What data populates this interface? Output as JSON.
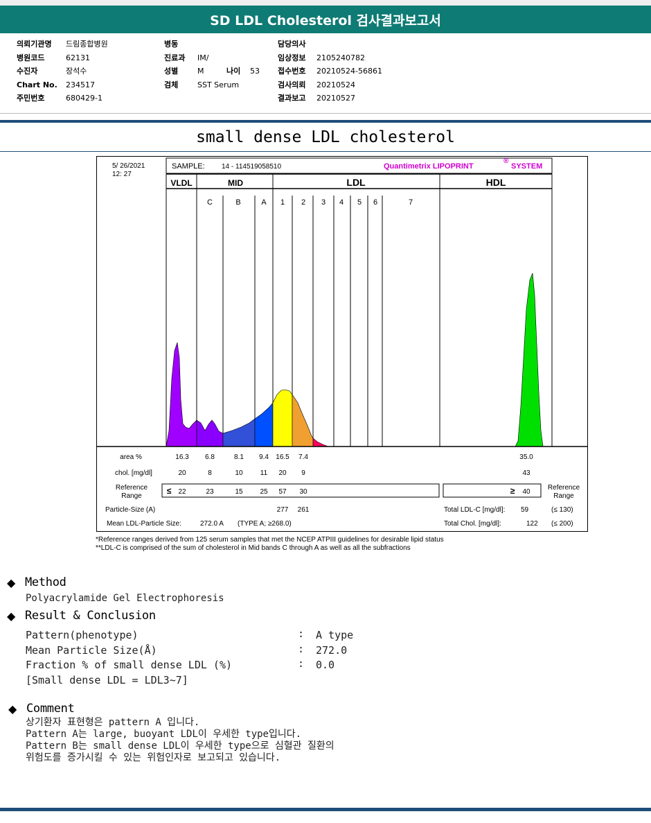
{
  "header": {
    "title": "SD LDL Cholesterol 검사결과보고서"
  },
  "info": {
    "col1": [
      {
        "label": "의뢰기관명",
        "value": "드림종합병원"
      },
      {
        "label": "병원코드",
        "value": "62131"
      },
      {
        "label": "수진자",
        "value": "장석수"
      },
      {
        "label": "Chart No.",
        "value": "234517"
      },
      {
        "label": "주민번호",
        "value": "680429-1"
      }
    ],
    "col2": [
      {
        "label": "병동",
        "value": ""
      },
      {
        "label": "진료과",
        "value": "IM/"
      },
      {
        "label": "성별",
        "value": "M"
      },
      {
        "label": "검체",
        "value": "SST Serum"
      }
    ],
    "age_label": "나이",
    "age_value": "53",
    "col3": [
      {
        "label": "담당의사",
        "value": ""
      },
      {
        "label": "임상정보",
        "value": "2105240782"
      },
      {
        "label": "접수번호",
        "value": "20210524-56861"
      },
      {
        "label": "검사의뢰",
        "value": "20210524"
      },
      {
        "label": "결과보고",
        "value": "20210527"
      }
    ]
  },
  "subtitle": "small dense LDL cholesterol",
  "chart_data": {
    "type": "area",
    "date": "5/ 26/2021",
    "time": "12: 27",
    "sample_label": "SAMPLE:",
    "sample_id": "14 - 114519058510",
    "brand": "Quantimetrix LIPOPRINT",
    "brand_mark": "®",
    "brand_suffix": "SYSTEM",
    "group_labels": [
      "VLDL",
      "MID",
      "LDL",
      "HDL"
    ],
    "band_labels": [
      "C",
      "B",
      "A",
      "1",
      "2",
      "3",
      "4",
      "5",
      "6",
      "7"
    ],
    "colors": {
      "vldl": "#a000ff",
      "mid_c": "#8a00ff",
      "mid_b": "#3250d8",
      "mid_a": "#0050ff",
      "ldl1": "#ffff00",
      "ldl2": "#f0a030",
      "ldl3": "#ff0060",
      "hdl": "#00e000"
    },
    "rows": {
      "area_label": "area %",
      "area": [
        "16.3",
        "6.8",
        "8.1",
        "9.4",
        "16.5",
        "7.4"
      ],
      "hdl_area": "35.0",
      "chol_label": "chol. [mg/dl]",
      "chol": [
        "20",
        "8",
        "10",
        "11",
        "20",
        "9"
      ],
      "hdl_chol": "43",
      "ref_label_1": "Reference",
      "ref_label_2": "Range",
      "ref_symbol": "≤",
      "ref": [
        "22",
        "23",
        "15",
        "25",
        "57",
        "30"
      ],
      "hdl_ref_symbol": "≥",
      "hdl_ref": "40",
      "particle_label": "Particle-Size (A)",
      "particle": [
        "277",
        "261"
      ],
      "mean_label": "Mean LDL-Particle Size:",
      "mean_value": "272.0 A",
      "mean_type": "(TYPE A; ≥268.0)",
      "total_ldl_label": "Total LDL-C [mg/dl]:",
      "total_ldl": "59",
      "total_ldl_ref": "(≤ 130)",
      "total_chol_label": "Total Chol. [mg/dl]:",
      "total_chol": "122",
      "total_chol_ref": "(≤ 200)"
    }
  },
  "footnotes": [
    "*Reference ranges derived from 125 serum samples that met the NCEP ATPIII guidelines for desirable lipid status",
    "**LDL-C is comprised of the sum of cholesterol in Mid bands C through A as well as all the subfractions"
  ],
  "method": {
    "heading": "Method",
    "text": "Polyacrylamide Gel Electrophoresis"
  },
  "result": {
    "heading": "Result & Conclusion",
    "rows": [
      {
        "label": "Pattern(phenotype)",
        "colon": ":",
        "value": "A type"
      },
      {
        "label": "Mean Particle Size(Å)",
        "colon": ":",
        "value": "272.0"
      },
      {
        "label": "Fraction % of small dense LDL (%)",
        "colon": ":",
        "value": "0.0"
      }
    ],
    "note": "[Small dense LDL = LDL3~7]"
  },
  "comment": {
    "heading": "Comment",
    "lines": [
      "상기환자 표현형은 pattern A 입니다.",
      "Pattern A는 large, buoyant LDL이 우세한 type입니다.",
      "Pattern B는 small dense LDL이 우세한 type으로 심혈관 질환의",
      "위험도를 증가시킬 수 있는 위험인자로 보고되고 있습니다."
    ]
  }
}
